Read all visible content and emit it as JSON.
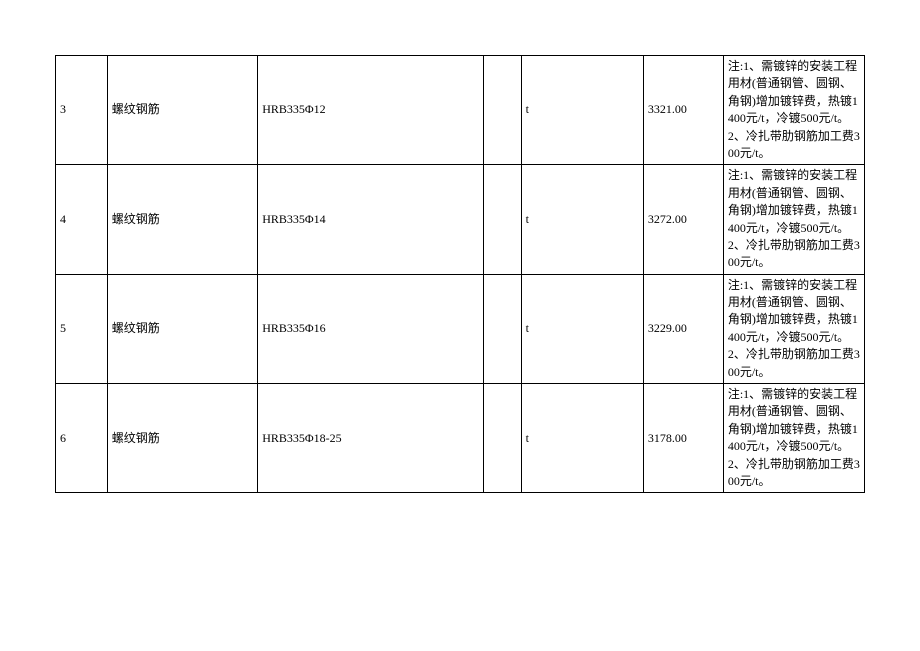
{
  "table": {
    "columns": [
      {
        "key": "idx",
        "width": "5.5%"
      },
      {
        "key": "name",
        "width": "16%"
      },
      {
        "key": "spec",
        "width": "24%"
      },
      {
        "key": "blank",
        "width": "4%"
      },
      {
        "key": "unit",
        "width": "13%"
      },
      {
        "key": "price",
        "width": "8.5%"
      },
      {
        "key": "note",
        "width": "15%"
      }
    ],
    "rows": [
      {
        "idx": "3",
        "name": "螺纹钢筋",
        "spec": "HRB335Φ12",
        "blank": "",
        "unit": "t",
        "price": "3321.00",
        "note": "注:1、需镀锌的安装工程用材(普通钢管、圆钢、角钢)增加镀锌费，热镀1400元/t，冷镀500元/t。2、冷扎带肋钢筋加工费300元/t。"
      },
      {
        "idx": "4",
        "name": "螺纹钢筋",
        "spec": "HRB335Φ14",
        "blank": "",
        "unit": "t",
        "price": "3272.00",
        "note": "注:1、需镀锌的安装工程用材(普通钢管、圆钢、角钢)增加镀锌费，热镀1400元/t，冷镀500元/t。2、冷扎带肋钢筋加工费300元/t。"
      },
      {
        "idx": "5",
        "name": "螺纹钢筋",
        "spec": "HRB335Φ16",
        "blank": "",
        "unit": "t",
        "price": "3229.00",
        "note": "注:1、需镀锌的安装工程用材(普通钢管、圆钢、角钢)增加镀锌费，热镀1400元/t，冷镀500元/t。2、冷扎带肋钢筋加工费300元/t。"
      },
      {
        "idx": "6",
        "name": "螺纹钢筋",
        "spec": "HRB335Φ18-25",
        "blank": "",
        "unit": "t",
        "price": "3178.00",
        "note": "注:1、需镀锌的安装工程用材(普通钢管、圆钢、角钢)增加镀锌费，热镀1400元/t，冷镀500元/t。2、冷扎带肋钢筋加工费300元/t。"
      }
    ],
    "border_color": "#000000",
    "font_size": 12,
    "background_color": "#ffffff",
    "text_color": "#000000"
  }
}
